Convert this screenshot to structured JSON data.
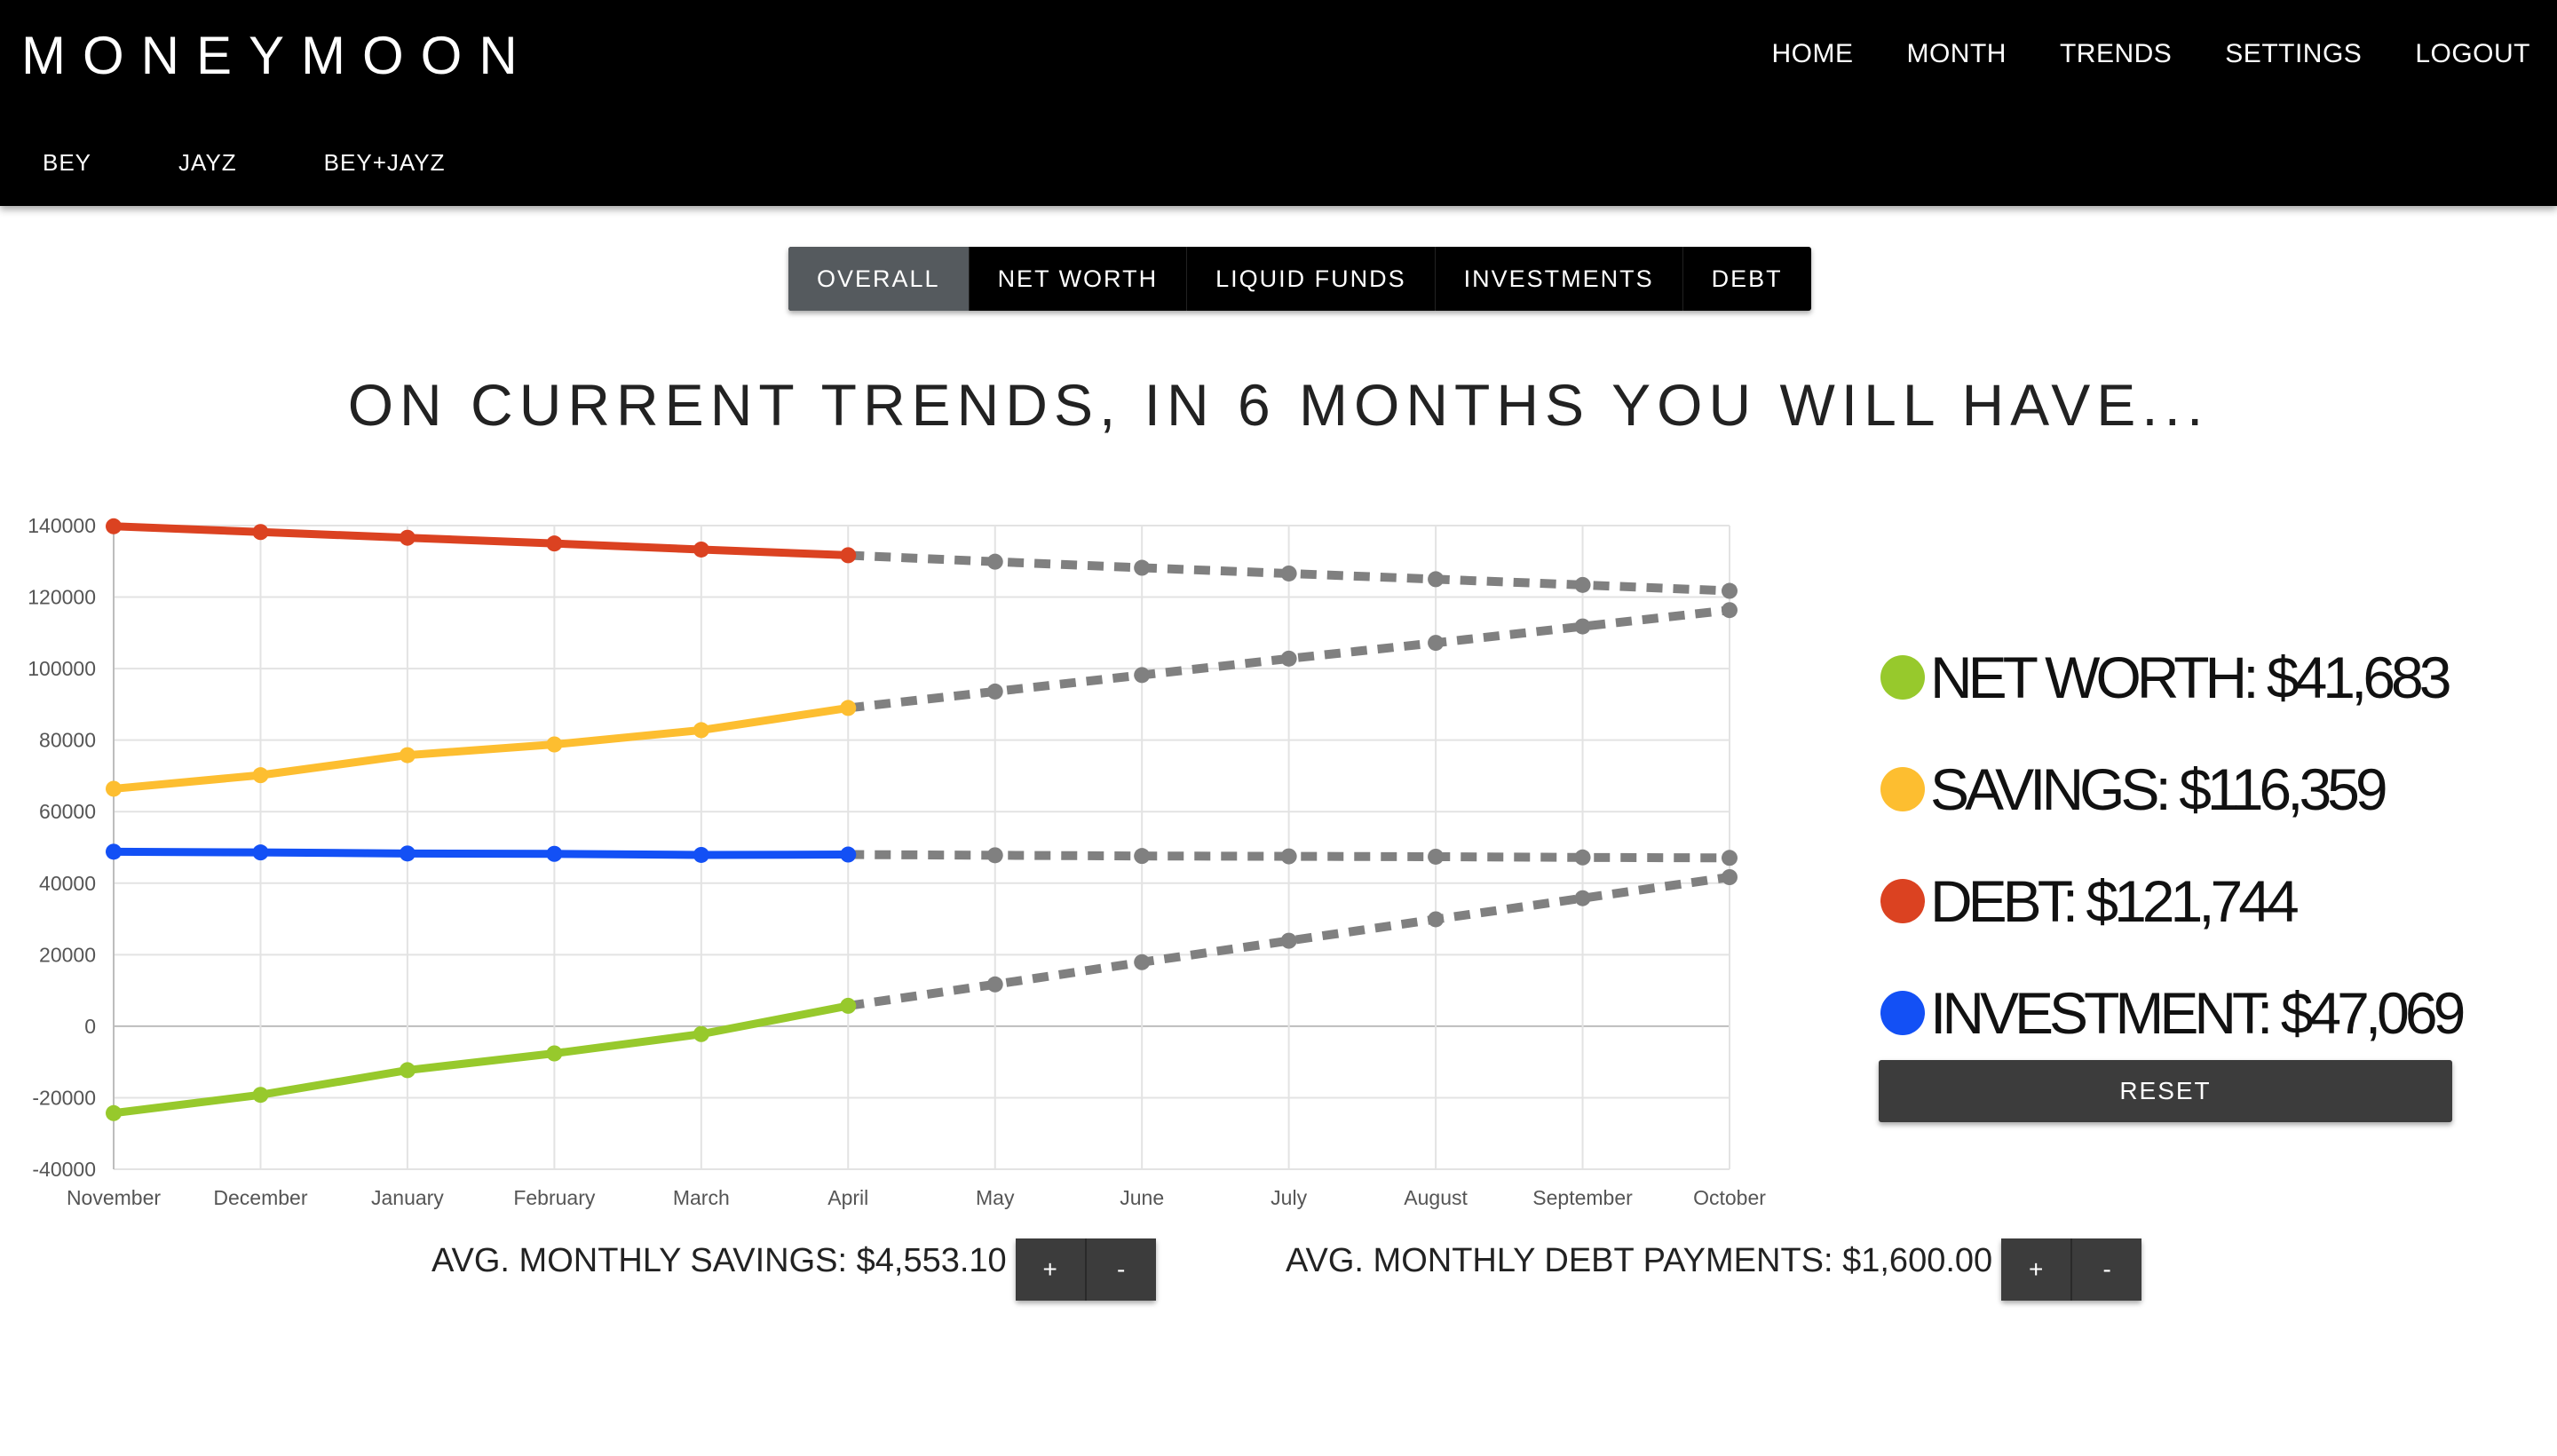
{
  "brand": "MONEYMOON",
  "nav": [
    "HOME",
    "MONTH",
    "TRENDS",
    "SETTINGS",
    "LOGOUT"
  ],
  "subnav": [
    "BEY",
    "JAYZ",
    "BEY+JAYZ"
  ],
  "tabs": [
    {
      "label": "OVERALL",
      "active": true
    },
    {
      "label": "NET WORTH",
      "active": false
    },
    {
      "label": "LIQUID FUNDS",
      "active": false
    },
    {
      "label": "INVESTMENTS",
      "active": false
    },
    {
      "label": "DEBT",
      "active": false
    }
  ],
  "headline": "ON CURRENT TRENDS, IN 6 MONTHS YOU WILL HAVE...",
  "legend": [
    {
      "text": "NET WORTH: $41,683",
      "color": "#97c92c"
    },
    {
      "text": "SAVINGS: $116,359",
      "color": "#fdbe30"
    },
    {
      "text": "DEBT: $121,744",
      "color": "#db4221"
    },
    {
      "text": "INVESTMENT: $47,069",
      "color": "#1350f5"
    }
  ],
  "reset_label": "RESET",
  "savings_adjust": {
    "label": "AVG. MONTHLY SAVINGS: $4,553.10",
    "plus": "+",
    "minus": "-"
  },
  "debt_adjust": {
    "label": "AVG. MONTHLY DEBT PAYMENTS: $1,600.00",
    "plus": "+",
    "minus": "-"
  },
  "chart_data": {
    "type": "line",
    "categories": [
      "November",
      "December",
      "January",
      "February",
      "March",
      "April",
      "May",
      "June",
      "July",
      "August",
      "September",
      "October"
    ],
    "ylim": [
      -40000,
      140000
    ],
    "yticks": [
      140000,
      120000,
      100000,
      80000,
      60000,
      40000,
      20000,
      0,
      -20000,
      -40000
    ],
    "grid": true,
    "projection_color": "#808080",
    "actual_count": 6,
    "series": [
      {
        "color": "#db4221",
        "values": [
          139800,
          138200,
          136600,
          135000,
          133300,
          131700,
          129900,
          128200,
          126600,
          125000,
          123400,
          121744
        ]
      },
      {
        "color": "#fdbe30",
        "values": [
          66400,
          70200,
          75800,
          78800,
          82800,
          89000,
          93600,
          98200,
          102800,
          107200,
          111800,
          116359
        ]
      },
      {
        "color": "#1350f5",
        "values": [
          48800,
          48600,
          48300,
          48200,
          47900,
          48000,
          47800,
          47600,
          47500,
          47400,
          47200,
          47069
        ]
      },
      {
        "color": "#97c92c",
        "values": [
          -24300,
          -19200,
          -12300,
          -7600,
          -2200,
          5700,
          11700,
          17900,
          23900,
          29900,
          35800,
          41683
        ]
      }
    ]
  }
}
